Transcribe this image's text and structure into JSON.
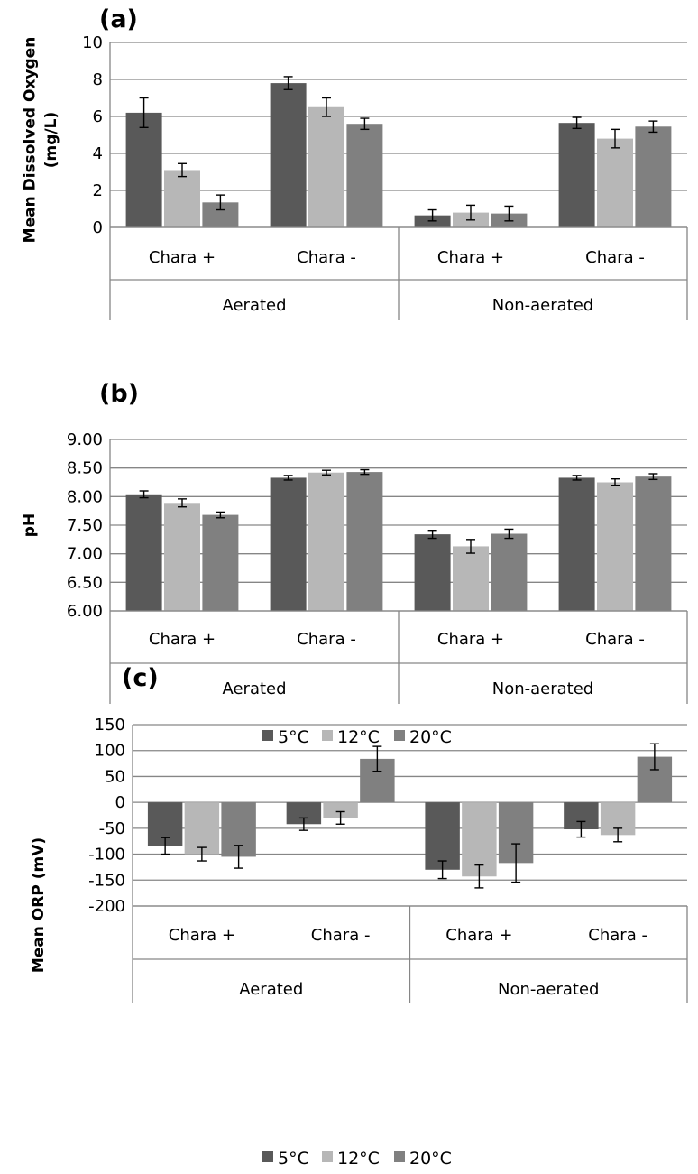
{
  "colors": {
    "5C": "#595959",
    "12C": "#b7b7b7",
    "20C": "#808080",
    "grid": "#868686",
    "axis": "#868686",
    "errbar": "#000000"
  },
  "legend": {
    "items": [
      "5°C",
      "12°C",
      "20°C"
    ]
  },
  "chart_data": [
    {
      "type": "bar",
      "panel": "(a)",
      "title": "",
      "xlabel": "",
      "ylabel": "Mean Dissolved Oxygen (mg/L)",
      "ylim": [
        0,
        10
      ],
      "yticks": [
        "0",
        "2",
        "4",
        "6",
        "8",
        "10"
      ],
      "categories": [
        "Chara +",
        "Chara -",
        "Chara +",
        "Chara -"
      ],
      "groups": [
        "Aerated",
        "Non-aerated"
      ],
      "grid": true,
      "legend": "none",
      "series": [
        {
          "name": "5°C",
          "values": [
            6.2,
            7.8,
            0.65,
            5.65
          ],
          "errors": [
            0.8,
            0.35,
            0.3,
            0.3
          ]
        },
        {
          "name": "12°C",
          "values": [
            3.1,
            6.5,
            0.8,
            4.8
          ],
          "errors": [
            0.35,
            0.5,
            0.4,
            0.5
          ]
        },
        {
          "name": "20°C",
          "values": [
            1.35,
            5.6,
            0.75,
            5.45
          ],
          "errors": [
            0.4,
            0.3,
            0.4,
            0.3
          ]
        }
      ]
    },
    {
      "type": "bar",
      "panel": "(b)",
      "title": "",
      "xlabel": "",
      "ylabel": "pH",
      "ylim": [
        6.0,
        9.0
      ],
      "yticks": [
        "6.00",
        "6.50",
        "7.00",
        "7.50",
        "8.00",
        "8.50",
        "9.00"
      ],
      "categories": [
        "Chara +",
        "Chara -",
        "Chara +",
        "Chara -"
      ],
      "groups": [
        "Aerated",
        "Non-aerated"
      ],
      "grid": true,
      "legend": "bottom",
      "series": [
        {
          "name": "5°C",
          "values": [
            8.04,
            8.33,
            7.34,
            8.33
          ],
          "errors": [
            0.06,
            0.04,
            0.07,
            0.04
          ]
        },
        {
          "name": "12°C",
          "values": [
            7.89,
            8.42,
            7.13,
            8.25
          ],
          "errors": [
            0.07,
            0.04,
            0.12,
            0.06
          ]
        },
        {
          "name": "20°C",
          "values": [
            7.68,
            8.43,
            7.35,
            8.35
          ],
          "errors": [
            0.05,
            0.04,
            0.08,
            0.05
          ]
        }
      ]
    },
    {
      "type": "bar",
      "panel": "(c)",
      "title": "",
      "xlabel": "",
      "ylabel": "Mean ORP (mV)",
      "ylim": [
        -200,
        150
      ],
      "yticks": [
        "-200",
        "-150",
        "-100",
        "-50",
        "0",
        "50",
        "100",
        "150"
      ],
      "categories": [
        "Chara +",
        "Chara -",
        "Chara +",
        "Chara -"
      ],
      "groups": [
        "Aerated",
        "Non-aerated"
      ],
      "grid": true,
      "legend": "bottom",
      "series": [
        {
          "name": "5°C",
          "values": [
            -84,
            -42,
            -130,
            -52
          ],
          "errors": [
            16,
            12,
            17,
            15
          ]
        },
        {
          "name": "12°C",
          "values": [
            -100,
            -30,
            -143,
            -63
          ],
          "errors": [
            13,
            12,
            22,
            13
          ]
        },
        {
          "name": "20°C",
          "values": [
            -105,
            84,
            -117,
            88
          ],
          "errors": [
            22,
            24,
            37,
            25
          ]
        }
      ]
    }
  ]
}
